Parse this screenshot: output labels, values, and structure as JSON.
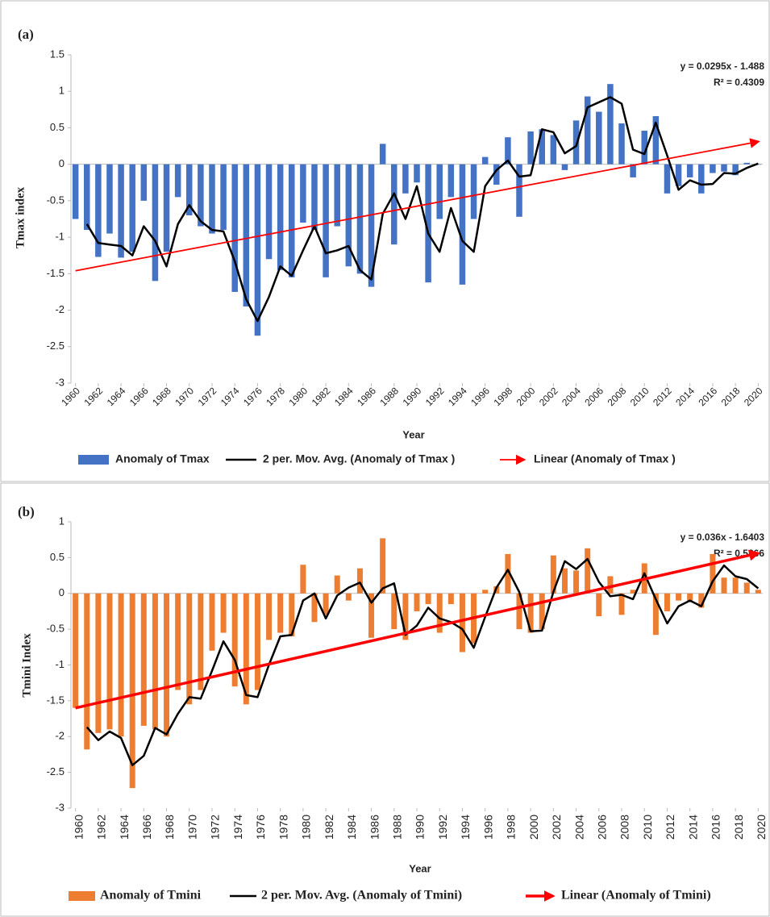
{
  "chart_data": [
    {
      "type": "bar",
      "panel_label": "(a)",
      "x_label": "Year",
      "y_label": "Tmax  index",
      "annotation": [
        "y = 0.0295x - 1.488",
        "R² = 0.4309"
      ],
      "x": [
        1960,
        1961,
        1962,
        1963,
        1964,
        1965,
        1966,
        1967,
        1968,
        1969,
        1970,
        1971,
        1972,
        1973,
        1974,
        1975,
        1976,
        1977,
        1978,
        1979,
        1980,
        1981,
        1982,
        1983,
        1984,
        1985,
        1986,
        1987,
        1988,
        1989,
        1990,
        1991,
        1992,
        1993,
        1994,
        1995,
        1996,
        1997,
        1998,
        1999,
        2000,
        2001,
        2002,
        2003,
        2004,
        2005,
        2006,
        2007,
        2008,
        2009,
        2010,
        2011,
        2012,
        2013,
        2014,
        2015,
        2016,
        2017,
        2018,
        2019,
        2020
      ],
      "xlim": [
        1959.6,
        2020.4
      ],
      "xticks": [
        1960,
        1962,
        1964,
        1966,
        1968,
        1970,
        1972,
        1974,
        1976,
        1978,
        1980,
        1982,
        1984,
        1986,
        1988,
        1990,
        1992,
        1994,
        1996,
        1998,
        2000,
        2002,
        2004,
        2006,
        2008,
        2010,
        2012,
        2014,
        2016,
        2018,
        2020
      ],
      "ylim": [
        -3,
        1.5
      ],
      "yticks": [
        1.5,
        1,
        0.5,
        0,
        -0.5,
        -1,
        -1.5,
        -2,
        -2.5,
        -3
      ],
      "series": [
        {
          "name": "Anomaly of Tmax",
          "type": "bar",
          "color": "#4472c4",
          "values": [
            -0.75,
            -0.9,
            -1.27,
            -0.95,
            -1.28,
            -1.2,
            -0.5,
            -1.6,
            -1.2,
            -0.45,
            -0.7,
            -0.85,
            -0.95,
            -0.9,
            -1.75,
            -1.95,
            -2.35,
            -1.3,
            -1.45,
            -1.55,
            -0.8,
            -0.9,
            -1.55,
            -0.85,
            -1.4,
            -1.5,
            -1.68,
            0.28,
            -1.1,
            -0.4,
            -0.25,
            -1.62,
            -0.75,
            -0.45,
            -1.65,
            -0.75,
            0.1,
            -0.28,
            0.37,
            -0.72,
            0.45,
            0.48,
            0.4,
            -0.08,
            0.6,
            0.93,
            0.72,
            1.1,
            0.56,
            -0.18,
            0.46,
            0.66,
            -0.4,
            -0.3,
            -0.18,
            -0.4,
            -0.12,
            -0.1,
            -0.15,
            0.02,
            0.0
          ]
        },
        {
          "name": "2 per. Mov. Avg. (Anomaly of Tmax )",
          "type": "line",
          "color": "#000000",
          "values": [
            null,
            -0.82,
            -1.08,
            -1.1,
            -1.12,
            -1.25,
            -0.85,
            -1.05,
            -1.4,
            -0.82,
            -0.56,
            -0.78,
            -0.9,
            -0.92,
            -1.33,
            -1.85,
            -2.15,
            -1.82,
            -1.4,
            -1.53,
            -1.18,
            -0.85,
            -1.22,
            -1.18,
            -1.12,
            -1.45,
            -1.58,
            -0.68,
            -0.4,
            -0.75,
            -0.3,
            -0.95,
            -1.2,
            -0.6,
            -1.05,
            -1.2,
            -0.3,
            -0.08,
            0.05,
            -0.17,
            -0.15,
            0.48,
            0.44,
            0.15,
            0.25,
            0.78,
            0.85,
            0.92,
            0.83,
            0.2,
            0.14,
            0.57,
            0.12,
            -0.35,
            -0.22,
            -0.28,
            -0.27,
            -0.12,
            -0.13,
            -0.05,
            0.01
          ]
        },
        {
          "name": "Linear (Anomaly of Tmax )",
          "type": "trend",
          "color": "#ff0000",
          "x": [
            1960,
            2020
          ],
          "values": [
            -1.46,
            0.31
          ]
        }
      ]
    },
    {
      "type": "bar",
      "panel_label": "(b)",
      "x_label": "Year",
      "y_label": "Tmini Index",
      "annotation": [
        "y = 0.036x - 1.6403",
        "R² = 0.5866"
      ],
      "x": [
        1960,
        1961,
        1962,
        1963,
        1964,
        1965,
        1966,
        1967,
        1968,
        1969,
        1970,
        1971,
        1972,
        1973,
        1974,
        1975,
        1976,
        1977,
        1978,
        1979,
        1980,
        1981,
        1982,
        1983,
        1984,
        1985,
        1986,
        1987,
        1988,
        1989,
        1990,
        1991,
        1992,
        1993,
        1994,
        1995,
        1996,
        1997,
        1998,
        1999,
        2000,
        2001,
        2002,
        2003,
        2004,
        2005,
        2006,
        2007,
        2008,
        2009,
        2010,
        2011,
        2012,
        2013,
        2014,
        2015,
        2016,
        2017,
        2018,
        2019,
        2020
      ],
      "xlim": [
        1959.6,
        2020.4
      ],
      "xticks": [
        1960,
        1962,
        1964,
        1966,
        1968,
        1970,
        1972,
        1974,
        1976,
        1978,
        1980,
        1982,
        1984,
        1986,
        1988,
        1990,
        1992,
        1994,
        1996,
        1998,
        2000,
        2002,
        2004,
        2006,
        2008,
        2010,
        2012,
        2014,
        2016,
        2018,
        2020
      ],
      "ylim": [
        -3,
        1
      ],
      "yticks": [
        1,
        0.5,
        0,
        -0.5,
        -1,
        -1.5,
        -2,
        -2.5,
        -3
      ],
      "series": [
        {
          "name": "Anomaly of Tmini",
          "type": "bar",
          "color": "#ed7d31",
          "values": [
            -1.6,
            -2.18,
            -1.95,
            -1.9,
            -2.0,
            -2.72,
            -1.85,
            -1.9,
            -2.0,
            -1.35,
            -1.55,
            -1.35,
            -0.8,
            -0.55,
            -1.3,
            -1.55,
            -1.35,
            -0.65,
            -0.55,
            -0.6,
            0.4,
            -0.4,
            -0.3,
            0.25,
            -0.1,
            0.35,
            -0.62,
            0.77,
            -0.5,
            -0.65,
            -0.25,
            -0.15,
            -0.55,
            -0.15,
            -0.82,
            -0.7,
            0.05,
            0.1,
            0.55,
            -0.5,
            -0.55,
            -0.5,
            0.53,
            0.35,
            0.32,
            0.63,
            -0.32,
            0.24,
            -0.3,
            0.05,
            0.42,
            -0.58,
            -0.25,
            -0.1,
            -0.1,
            -0.2,
            0.55,
            0.22,
            0.22,
            0.15,
            0.05
          ]
        },
        {
          "name": "2 per. Mov. Avg. (Anomaly of Tmini)",
          "type": "line",
          "color": "#000000",
          "values": [
            null,
            -1.87,
            -2.05,
            -1.93,
            -2.02,
            -2.4,
            -2.27,
            -1.88,
            -1.97,
            -1.68,
            -1.45,
            -1.47,
            -1.08,
            -0.67,
            -0.93,
            -1.42,
            -1.45,
            -1.0,
            -0.6,
            -0.58,
            -0.1,
            0.0,
            -0.35,
            -0.03,
            0.08,
            0.15,
            -0.13,
            0.07,
            0.14,
            -0.58,
            -0.45,
            -0.2,
            -0.35,
            -0.4,
            -0.5,
            -0.76,
            -0.33,
            0.08,
            0.33,
            0.02,
            -0.53,
            -0.52,
            0.02,
            0.45,
            0.34,
            0.48,
            0.16,
            -0.04,
            -0.02,
            -0.08,
            0.28,
            -0.08,
            -0.42,
            -0.18,
            -0.1,
            -0.18,
            0.17,
            0.39,
            0.24,
            0.2,
            0.07
          ]
        },
        {
          "name": "Linear (Anomaly of Tmini)",
          "type": "trend",
          "color": "#ff0000",
          "x": [
            1960,
            2020
          ],
          "values": [
            -1.6,
            0.56
          ]
        }
      ]
    }
  ]
}
